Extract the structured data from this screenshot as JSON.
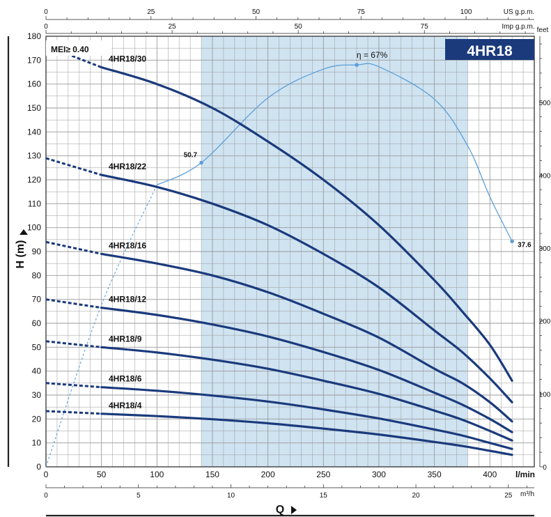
{
  "chart_data": {
    "type": "line",
    "title": "4HR18",
    "badge": "MEI≥ 0.40",
    "xlabel": "Q",
    "ylabel": "H (m)",
    "xlim": [
      0,
      420
    ],
    "ylim": [
      0,
      180
    ],
    "x_unit": "l/min",
    "x_ticks": [
      0,
      50,
      100,
      150,
      200,
      250,
      300,
      350,
      400
    ],
    "y_ticks": [
      0,
      10,
      20,
      30,
      40,
      50,
      60,
      70,
      80,
      90,
      100,
      110,
      120,
      130,
      140,
      150,
      160,
      170,
      180
    ],
    "aux_axes": {
      "m3h": {
        "unit": "m³/h",
        "ticks": [
          0,
          5,
          10,
          15,
          20,
          25
        ]
      },
      "us_gpm": {
        "unit": "US g.p.m.",
        "ticks": [
          0,
          25,
          50,
          75,
          100
        ]
      },
      "imp_gpm": {
        "unit": "Imp g.p.m.",
        "ticks": [
          0,
          25,
          50,
          75
        ]
      },
      "feet": {
        "unit": "feet",
        "ticks": [
          0,
          100,
          200,
          300,
          400,
          500
        ]
      }
    },
    "operating_range": [
      140,
      380
    ],
    "series": [
      {
        "name": "4HR18/30",
        "dashed": {
          "x": [
            0,
            50
          ],
          "y": [
            176,
            167
          ]
        },
        "solid": {
          "x": [
            50,
            100,
            150,
            200,
            250,
            300,
            350,
            375,
            400,
            420
          ],
          "y": [
            167,
            160,
            150,
            136,
            120,
            101,
            78,
            65,
            51,
            36
          ]
        }
      },
      {
        "name": "4HR18/22",
        "dashed": {
          "x": [
            0,
            50
          ],
          "y": [
            129,
            122
          ]
        },
        "solid": {
          "x": [
            50,
            100,
            150,
            200,
            250,
            300,
            350,
            375,
            400,
            420
          ],
          "y": [
            122,
            117,
            110,
            101,
            89,
            75,
            57,
            48,
            37,
            27
          ]
        }
      },
      {
        "name": "4HR18/16",
        "dashed": {
          "x": [
            0,
            50
          ],
          "y": [
            94,
            89
          ]
        },
        "solid": {
          "x": [
            50,
            100,
            150,
            200,
            250,
            300,
            350,
            375,
            400,
            420
          ],
          "y": [
            89,
            85,
            80,
            73,
            64,
            54,
            41,
            35,
            27,
            19
          ]
        }
      },
      {
        "name": "4HR18/12",
        "dashed": {
          "x": [
            0,
            50
          ],
          "y": [
            70,
            66.5
          ]
        },
        "solid": {
          "x": [
            50,
            100,
            150,
            200,
            250,
            300,
            350,
            375,
            400,
            420
          ],
          "y": [
            66.5,
            63.5,
            59.5,
            54.5,
            48,
            40.5,
            31,
            26,
            20,
            14.5
          ]
        }
      },
      {
        "name": "4HR18/9",
        "dashed": {
          "x": [
            0,
            50
          ],
          "y": [
            52.5,
            50
          ]
        },
        "solid": {
          "x": [
            50,
            100,
            150,
            200,
            250,
            300,
            350,
            375,
            400,
            420
          ],
          "y": [
            50,
            47.8,
            44.8,
            41,
            36,
            30.5,
            23.5,
            19.7,
            15,
            11
          ]
        }
      },
      {
        "name": "4HR18/6",
        "dashed": {
          "x": [
            0,
            50
          ],
          "y": [
            35,
            33.3
          ]
        },
        "solid": {
          "x": [
            50,
            100,
            150,
            200,
            250,
            300,
            350,
            375,
            400,
            420
          ],
          "y": [
            33.3,
            31.8,
            29.8,
            27.3,
            24,
            20.2,
            15.6,
            13.1,
            10,
            7.5
          ]
        }
      },
      {
        "name": "4HR18/4",
        "dashed": {
          "x": [
            0,
            50
          ],
          "y": [
            23.3,
            22.2
          ]
        },
        "solid": {
          "x": [
            50,
            100,
            150,
            200,
            250,
            300,
            350,
            375,
            400,
            420
          ],
          "y": [
            22.2,
            21.2,
            19.9,
            18.2,
            16,
            13.5,
            10.4,
            8.7,
            6.7,
            5
          ]
        }
      }
    ],
    "efficiency": {
      "peak_label": "η = 67%",
      "x": [
        0,
        50,
        100,
        140,
        200,
        250,
        280,
        300,
        350,
        380,
        400,
        420
      ],
      "eta": [
        0,
        27,
        47,
        50.7,
        61.5,
        66.3,
        67,
        66.7,
        61.3,
        53.5,
        45,
        37.6
      ],
      "ylim": [
        0,
        72
      ],
      "points": [
        {
          "x": 140,
          "eta": 50.7,
          "label": "50.7"
        },
        {
          "x": 280,
          "eta": 67,
          "label": ""
        },
        {
          "x": 420,
          "eta": 37.6,
          "label": "37.6"
        }
      ]
    },
    "colors": {
      "curve": "#1a3a7c",
      "efficiency": "#5b9fd8",
      "shade": "#cfe3f1",
      "badge_bg": "#1a3a7c",
      "badge_text": "#ffffff",
      "grid": "#9a9a9a"
    }
  }
}
